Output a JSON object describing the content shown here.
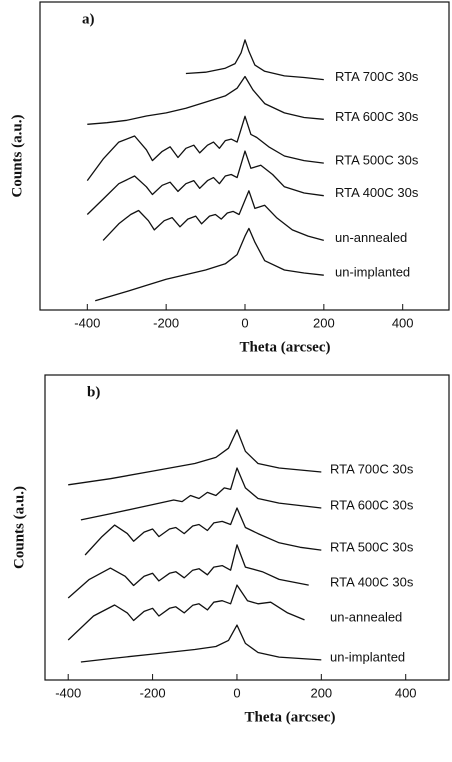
{
  "chart_data": [
    {
      "type": "line",
      "annotation": "a)",
      "xlabel": "Theta (arcsec)",
      "ylabel": "Counts (a.u.)",
      "xlim": [
        -520,
        520
      ],
      "xticks": [
        -400,
        -200,
        0,
        200,
        400
      ],
      "ylim": [
        0,
        10
      ],
      "series": [
        {
          "name": "RTA 700C 30s",
          "color": "#111111",
          "x": [
            -150,
            -100,
            -50,
            -25,
            -10,
            0,
            10,
            25,
            50,
            100,
            150,
            200
          ],
          "values": [
            7.68,
            7.72,
            7.85,
            8.0,
            8.35,
            8.77,
            8.4,
            7.95,
            7.75,
            7.6,
            7.55,
            7.48
          ]
        },
        {
          "name": "RTA 600C 30s",
          "color": "#111111",
          "x": [
            -400,
            -350,
            -300,
            -250,
            -200,
            -150,
            -100,
            -50,
            -20,
            0,
            20,
            50,
            100,
            150,
            200
          ],
          "values": [
            6.03,
            6.08,
            6.16,
            6.3,
            6.4,
            6.55,
            6.75,
            6.95,
            7.2,
            7.58,
            7.15,
            6.7,
            6.4,
            6.25,
            6.19
          ]
        },
        {
          "name": "RTA 500C 30s",
          "color": "#111111",
          "x": [
            -400,
            -360,
            -320,
            -280,
            -250,
            -235,
            -210,
            -190,
            -170,
            -150,
            -130,
            -115,
            -95,
            -80,
            -65,
            -50,
            -35,
            -20,
            0,
            15,
            30,
            60,
            100,
            150,
            200
          ],
          "values": [
            4.2,
            4.9,
            5.45,
            5.65,
            5.2,
            4.85,
            5.15,
            5.3,
            4.95,
            5.25,
            5.35,
            5.1,
            5.35,
            5.45,
            5.25,
            5.5,
            5.55,
            5.45,
            6.29,
            5.7,
            5.6,
            5.3,
            5.0,
            4.85,
            4.77
          ]
        },
        {
          "name": "RTA 400C 30s",
          "color": "#111111",
          "x": [
            -400,
            -360,
            -320,
            -280,
            -250,
            -235,
            -210,
            -190,
            -170,
            -150,
            -130,
            -115,
            -95,
            -80,
            -65,
            -50,
            -35,
            -20,
            0,
            15,
            40,
            70,
            100,
            150,
            200
          ],
          "values": [
            3.1,
            3.6,
            4.1,
            4.35,
            4.0,
            3.75,
            4.05,
            4.15,
            3.85,
            4.1,
            4.2,
            3.95,
            4.2,
            4.3,
            4.1,
            4.35,
            4.4,
            4.3,
            5.16,
            4.6,
            4.7,
            4.4,
            4.0,
            3.8,
            3.71
          ]
        },
        {
          "name": "un-annealed",
          "color": "#111111",
          "x": [
            -360,
            -320,
            -290,
            -270,
            -245,
            -230,
            -205,
            -185,
            -165,
            -145,
            -125,
            -110,
            -90,
            -75,
            -60,
            -45,
            -30,
            -15,
            10,
            25,
            50,
            80,
            120,
            160,
            200
          ],
          "values": [
            2.26,
            2.8,
            3.1,
            3.23,
            2.9,
            2.6,
            2.9,
            3.0,
            2.7,
            2.95,
            3.05,
            2.8,
            3.05,
            3.1,
            2.95,
            3.15,
            3.2,
            3.1,
            3.87,
            3.3,
            3.4,
            3.0,
            2.6,
            2.4,
            2.26
          ]
        },
        {
          "name": "un-implanted",
          "color": "#111111",
          "x": [
            -380,
            -340,
            -300,
            -250,
            -200,
            -150,
            -100,
            -50,
            -20,
            0,
            10,
            25,
            50,
            100,
            150,
            200
          ],
          "values": [
            0.3,
            0.45,
            0.6,
            0.8,
            1.0,
            1.15,
            1.3,
            1.5,
            1.8,
            2.4,
            2.65,
            2.2,
            1.6,
            1.3,
            1.2,
            1.13
          ]
        }
      ]
    },
    {
      "type": "line",
      "annotation": "b)",
      "xlabel": "Theta (arcsec)",
      "ylabel": "Counts (a.u.)",
      "xlim": [
        -455,
        505
      ],
      "xticks": [
        -400,
        -200,
        0,
        200,
        400
      ],
      "ylim": [
        0,
        10
      ],
      "series": [
        {
          "name": "RTA 700C 30s",
          "color": "#111111",
          "x": [
            -400,
            -300,
            -200,
            -100,
            -50,
            -20,
            0,
            20,
            50,
            100,
            200
          ],
          "values": [
            6.4,
            6.6,
            6.85,
            7.1,
            7.3,
            7.6,
            8.2,
            7.5,
            7.1,
            6.95,
            6.82
          ]
        },
        {
          "name": "RTA 600C 30s",
          "color": "#111111",
          "x": [
            -370,
            -300,
            -200,
            -150,
            -130,
            -110,
            -90,
            -70,
            -50,
            -30,
            -15,
            0,
            20,
            50,
            100,
            200
          ],
          "values": [
            5.25,
            5.45,
            5.75,
            5.9,
            5.85,
            6.05,
            5.95,
            6.15,
            6.05,
            6.3,
            6.25,
            6.95,
            6.3,
            5.95,
            5.8,
            5.64
          ]
        },
        {
          "name": "RTA 500C 30s",
          "color": "#111111",
          "x": [
            -360,
            -320,
            -290,
            -260,
            -245,
            -220,
            -200,
            -185,
            -160,
            -145,
            -125,
            -105,
            -90,
            -70,
            -55,
            -35,
            -15,
            0,
            20,
            50,
            100,
            150,
            200
          ],
          "values": [
            4.1,
            4.7,
            5.08,
            4.8,
            4.55,
            4.85,
            4.95,
            4.7,
            4.95,
            5.0,
            4.8,
            5.05,
            5.1,
            4.9,
            5.15,
            5.2,
            5.1,
            5.64,
            5.0,
            4.8,
            4.5,
            4.35,
            4.26
          ]
        },
        {
          "name": "RTA 400C 30s",
          "color": "#111111",
          "x": [
            -400,
            -350,
            -300,
            -265,
            -245,
            -220,
            -200,
            -185,
            -160,
            -145,
            -125,
            -105,
            -90,
            -70,
            -55,
            -35,
            -15,
            0,
            20,
            60,
            100,
            170
          ],
          "values": [
            2.69,
            3.3,
            3.67,
            3.4,
            3.1,
            3.4,
            3.5,
            3.25,
            3.5,
            3.55,
            3.35,
            3.6,
            3.65,
            3.45,
            3.7,
            3.75,
            3.6,
            4.43,
            3.7,
            3.55,
            3.3,
            3.11
          ]
        },
        {
          "name": "un-annealed",
          "color": "#111111",
          "x": [
            -400,
            -340,
            -290,
            -260,
            -245,
            -220,
            -200,
            -185,
            -160,
            -145,
            -125,
            -105,
            -90,
            -70,
            -55,
            -35,
            -15,
            0,
            25,
            50,
            80,
            120,
            160
          ],
          "values": [
            1.31,
            2.1,
            2.46,
            2.2,
            1.95,
            2.25,
            2.35,
            2.1,
            2.35,
            2.4,
            2.2,
            2.45,
            2.5,
            2.3,
            2.55,
            2.6,
            2.5,
            3.11,
            2.6,
            2.5,
            2.55,
            2.2,
            1.97
          ]
        },
        {
          "name": "un-implanted",
          "color": "#111111",
          "x": [
            -370,
            -300,
            -200,
            -100,
            -50,
            -20,
            0,
            20,
            50,
            100,
            200
          ],
          "values": [
            0.59,
            0.7,
            0.85,
            1.0,
            1.1,
            1.3,
            1.8,
            1.2,
            0.9,
            0.75,
            0.66
          ]
        }
      ]
    }
  ]
}
